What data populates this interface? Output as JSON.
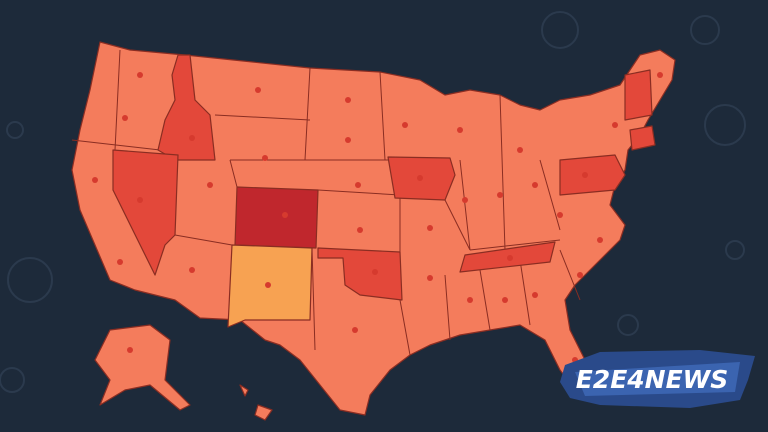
{
  "logo": {
    "text": "E2E4NEWS"
  }
}
